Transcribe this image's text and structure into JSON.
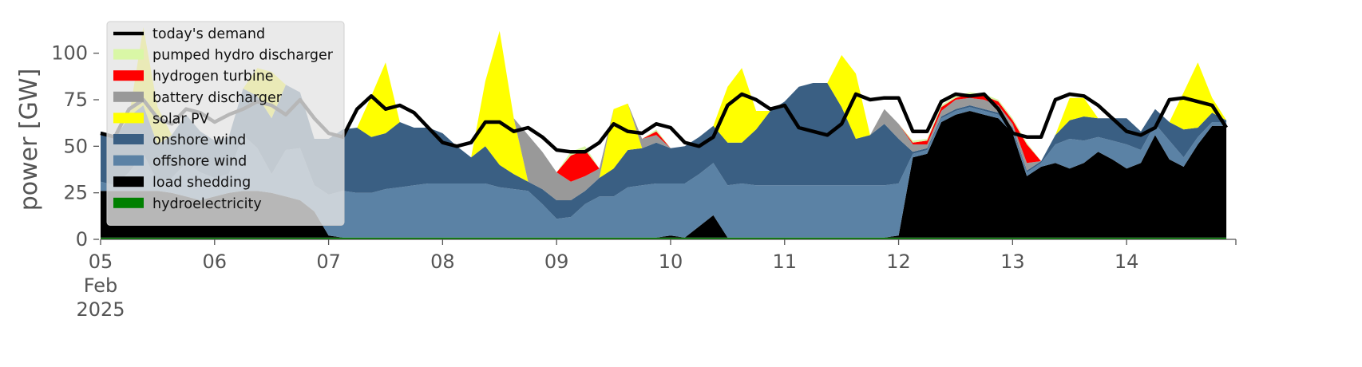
{
  "chart_data": {
    "type": "area",
    "title": "",
    "xlabel": "",
    "ylabel": "power [GW]",
    "x_range": [
      "2025-02-05T00:00",
      "2025-02-14T23:00"
    ],
    "ylim": [
      0,
      120
    ],
    "yticks": [
      "0",
      "25",
      "50",
      "75",
      "100"
    ],
    "xticks": [
      {
        "x": "2025-02-05",
        "lines": [
          "05",
          "Feb",
          "2025"
        ]
      },
      {
        "x": "2025-02-06",
        "lines": [
          "06"
        ]
      },
      {
        "x": "2025-02-07",
        "lines": [
          "07"
        ]
      },
      {
        "x": "2025-02-08",
        "lines": [
          "08"
        ]
      },
      {
        "x": "2025-02-09",
        "lines": [
          "09"
        ]
      },
      {
        "x": "2025-02-10",
        "lines": [
          "10"
        ]
      },
      {
        "x": "2025-02-11",
        "lines": [
          "11"
        ]
      },
      {
        "x": "2025-02-12",
        "lines": [
          "12"
        ]
      },
      {
        "x": "2025-02-13",
        "lines": [
          "13"
        ]
      },
      {
        "x": "2025-02-14",
        "lines": [
          "14"
        ]
      }
    ],
    "grid": false,
    "legend_position": "top-left",
    "timestamps": [
      "2025-02-05T00:00",
      "2025-02-05T03:00",
      "2025-02-05T06:00",
      "2025-02-05T09:00",
      "2025-02-05T12:00",
      "2025-02-05T15:00",
      "2025-02-05T18:00",
      "2025-02-05T21:00",
      "2025-02-06T00:00",
      "2025-02-06T03:00",
      "2025-02-06T06:00",
      "2025-02-06T09:00",
      "2025-02-06T12:00",
      "2025-02-06T15:00",
      "2025-02-06T18:00",
      "2025-02-06T21:00",
      "2025-02-07T00:00",
      "2025-02-07T03:00",
      "2025-02-07T06:00",
      "2025-02-07T09:00",
      "2025-02-07T12:00",
      "2025-02-07T15:00",
      "2025-02-07T18:00",
      "2025-02-07T21:00",
      "2025-02-08T00:00",
      "2025-02-08T03:00",
      "2025-02-08T06:00",
      "2025-02-08T09:00",
      "2025-02-08T12:00",
      "2025-02-08T15:00",
      "2025-02-08T18:00",
      "2025-02-08T21:00",
      "2025-02-09T00:00",
      "2025-02-09T03:00",
      "2025-02-09T06:00",
      "2025-02-09T09:00",
      "2025-02-09T12:00",
      "2025-02-09T15:00",
      "2025-02-09T18:00",
      "2025-02-09T21:00",
      "2025-02-10T00:00",
      "2025-02-10T03:00",
      "2025-02-10T06:00",
      "2025-02-10T09:00",
      "2025-02-10T12:00",
      "2025-02-10T15:00",
      "2025-02-10T18:00",
      "2025-02-10T21:00",
      "2025-02-11T00:00",
      "2025-02-11T03:00",
      "2025-02-11T06:00",
      "2025-02-11T09:00",
      "2025-02-11T12:00",
      "2025-02-11T15:00",
      "2025-02-11T18:00",
      "2025-02-11T21:00",
      "2025-02-12T00:00",
      "2025-02-12T03:00",
      "2025-02-12T06:00",
      "2025-02-12T09:00",
      "2025-02-12T12:00",
      "2025-02-12T15:00",
      "2025-02-12T18:00",
      "2025-02-12T21:00",
      "2025-02-13T00:00",
      "2025-02-13T03:00",
      "2025-02-13T06:00",
      "2025-02-13T09:00",
      "2025-02-13T12:00",
      "2025-02-13T15:00",
      "2025-02-13T18:00",
      "2025-02-13T21:00",
      "2025-02-14T00:00",
      "2025-02-14T03:00",
      "2025-02-14T06:00",
      "2025-02-14T09:00",
      "2025-02-14T12:00",
      "2025-02-14T15:00",
      "2025-02-14T18:00",
      "2025-02-14T21:00"
    ],
    "series": [
      {
        "name": "hydroelectricity",
        "color": "#008000",
        "values": [
          1,
          1,
          1,
          1,
          1,
          1,
          1,
          1,
          1,
          1,
          1,
          1,
          1,
          1,
          1,
          1,
          1,
          1,
          1,
          1,
          1,
          1,
          1,
          1,
          1,
          1,
          1,
          1,
          1,
          1,
          1,
          1,
          1,
          1,
          1,
          1,
          1,
          1,
          1,
          1,
          1,
          1,
          1,
          1,
          1,
          1,
          1,
          1,
          1,
          1,
          1,
          1,
          1,
          1,
          1,
          1,
          1,
          1,
          1,
          1,
          1,
          1,
          1,
          1,
          1,
          1,
          1,
          1,
          1,
          1,
          1,
          1,
          1,
          1,
          1,
          1,
          1,
          1,
          1,
          1
        ]
      },
      {
        "name": "load shedding",
        "color": "#000000",
        "values": [
          25,
          25,
          25,
          25,
          25,
          24,
          22,
          20,
          22,
          24,
          25,
          25,
          24,
          22,
          20,
          14,
          1,
          0,
          0,
          0,
          0,
          0,
          0,
          0,
          0,
          0,
          0,
          0,
          0,
          0,
          0,
          0,
          0,
          0,
          0,
          0,
          0,
          0,
          0,
          0,
          1,
          0,
          6,
          12,
          0,
          0,
          0,
          0,
          0,
          0,
          0,
          0,
          0,
          0,
          0,
          0,
          1,
          43,
          45,
          62,
          66,
          68,
          66,
          64,
          56,
          33,
          38,
          40,
          37,
          40,
          46,
          42,
          37,
          40,
          55,
          42,
          38,
          50,
          60,
          60
        ]
      },
      {
        "name": "offshore wind",
        "color": "#5b82a5",
        "values": [
          5,
          3,
          10,
          20,
          5,
          8,
          18,
          15,
          10,
          10,
          30,
          23,
          10,
          25,
          28,
          14,
          22,
          25,
          24,
          24,
          26,
          27,
          28,
          29,
          29,
          29,
          29,
          29,
          27,
          26,
          25,
          18,
          10,
          11,
          18,
          22,
          22,
          27,
          28,
          29,
          28,
          29,
          28,
          28,
          28,
          29,
          28,
          28,
          28,
          28,
          28,
          28,
          28,
          28,
          28,
          28,
          28,
          2,
          2,
          2,
          2,
          2,
          2,
          2,
          2,
          2,
          2,
          10,
          16,
          12,
          8,
          10,
          13,
          7,
          6,
          10,
          5,
          4,
          2,
          2
        ]
      },
      {
        "name": "onshore wind",
        "color": "#3a5f83",
        "values": [
          27,
          25,
          30,
          26,
          20,
          23,
          26,
          22,
          20,
          20,
          25,
          28,
          30,
          35,
          30,
          25,
          30,
          33,
          35,
          30,
          30,
          35,
          31,
          30,
          27,
          20,
          14,
          20,
          12,
          8,
          5,
          8,
          10,
          9,
          7,
          10,
          15,
          20,
          20,
          22,
          19,
          20,
          20,
          20,
          23,
          22,
          30,
          40,
          45,
          53,
          55,
          55,
          42,
          25,
          27,
          33,
          24,
          1,
          1,
          1,
          1,
          1,
          1,
          1,
          1,
          1,
          1,
          5,
          10,
          13,
          10,
          12,
          14,
          10,
          8,
          10,
          15,
          5,
          5,
          1
        ]
      },
      {
        "name": "solar PV",
        "color": "#ffff00",
        "values": [
          0,
          0,
          0,
          42,
          20,
          0,
          0,
          0,
          0,
          0,
          0,
          15,
          25,
          0,
          0,
          0,
          0,
          0,
          0,
          22,
          38,
          0,
          0,
          0,
          0,
          0,
          0,
          35,
          72,
          30,
          0,
          0,
          0,
          0,
          0,
          0,
          32,
          25,
          0,
          0,
          0,
          0,
          0,
          0,
          30,
          40,
          10,
          0,
          0,
          0,
          0,
          0,
          28,
          35,
          0,
          0,
          0,
          0,
          0,
          0,
          0,
          0,
          0,
          0,
          0,
          0,
          0,
          0,
          12,
          10,
          0,
          0,
          0,
          0,
          0,
          0,
          20,
          35,
          8,
          0
        ]
      },
      {
        "name": "battery discharger",
        "color": "#999999",
        "values": [
          0,
          0,
          0,
          0,
          0,
          0,
          0,
          0,
          0,
          0,
          0,
          0,
          0,
          0,
          0,
          0,
          0,
          0,
          0,
          0,
          0,
          0,
          0,
          0,
          0,
          0,
          0,
          0,
          0,
          0,
          25,
          20,
          15,
          10,
          8,
          5,
          0,
          0,
          5,
          4,
          0,
          0,
          0,
          0,
          0,
          0,
          0,
          0,
          0,
          0,
          0,
          0,
          0,
          0,
          0,
          8,
          8,
          4,
          2,
          3,
          5,
          4,
          5,
          4,
          2,
          4,
          0,
          0,
          0,
          0,
          0,
          0,
          0,
          0,
          0,
          0,
          0,
          0,
          0,
          0
        ]
      },
      {
        "name": "hydrogen turbine",
        "color": "#ff0000",
        "values": [
          0,
          0,
          0,
          0,
          0,
          0,
          0,
          0,
          0,
          0,
          0,
          0,
          0,
          0,
          0,
          0,
          0,
          0,
          0,
          0,
          0,
          0,
          0,
          0,
          0,
          0,
          0,
          0,
          0,
          0,
          0,
          0,
          0,
          14,
          14,
          0,
          0,
          0,
          0,
          2,
          0,
          0,
          0,
          0,
          0,
          0,
          0,
          0,
          0,
          0,
          0,
          0,
          0,
          0,
          0,
          0,
          0,
          1,
          2,
          2,
          1,
          2,
          2,
          2,
          2,
          10,
          0,
          0,
          0,
          0,
          0,
          0,
          0,
          0,
          0,
          0,
          0,
          0,
          0,
          0
        ]
      },
      {
        "name": "pumped hydro discharger",
        "color": "#d9f7a6",
        "values": [
          0,
          0,
          0,
          0,
          0,
          0,
          0,
          0,
          0,
          0,
          0,
          0,
          0,
          0,
          0,
          0,
          0,
          0,
          0,
          0,
          0,
          0,
          0,
          0,
          0,
          0,
          0,
          0,
          0,
          0,
          0,
          0,
          0,
          2,
          2,
          0,
          0,
          0,
          0,
          1,
          0,
          0,
          0,
          0,
          0,
          0,
          0,
          0,
          0,
          0,
          0,
          0,
          0,
          0,
          0,
          0,
          0,
          1,
          1,
          1,
          1,
          1,
          1,
          1,
          1,
          1,
          0,
          0,
          0,
          0,
          0,
          0,
          0,
          0,
          0,
          0,
          0,
          0,
          0,
          0
        ]
      }
    ],
    "line_series": {
      "name": "today's demand",
      "color": "#000000",
      "values": [
        57,
        55,
        70,
        75,
        65,
        62,
        70,
        68,
        63,
        67,
        70,
        74,
        72,
        67,
        75,
        65,
        57,
        55,
        70,
        77,
        70,
        72,
        68,
        60,
        52,
        50,
        52,
        63,
        63,
        58,
        60,
        55,
        48,
        47,
        47,
        52,
        62,
        58,
        57,
        62,
        60,
        52,
        50,
        55,
        72,
        78,
        75,
        70,
        72,
        60,
        58,
        56,
        62,
        78,
        75,
        76,
        76,
        58,
        58,
        74,
        78,
        77,
        78,
        70,
        57,
        55,
        55,
        75,
        78,
        77,
        72,
        65,
        58,
        56,
        60,
        75,
        76,
        74,
        72,
        60
      ]
    }
  }
}
